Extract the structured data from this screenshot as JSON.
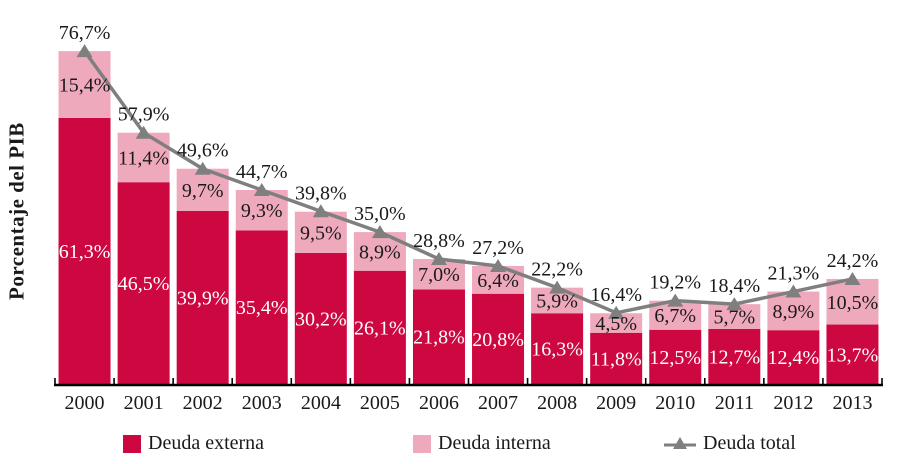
{
  "chart_data": {
    "type": "bar",
    "subtype": "stacked-bars-with-line-overlay",
    "title": "",
    "xlabel": "",
    "ylabel": "Porcentaje del PIB",
    "ylim": [
      0,
      80
    ],
    "grid": false,
    "legend_position": "bottom",
    "value_label_format": "comma-decimal percent (e.g. 76,7%)",
    "categories": [
      "2000",
      "2001",
      "2002",
      "2003",
      "2004",
      "2005",
      "2006",
      "2007",
      "2008",
      "2009",
      "2010",
      "2011",
      "2012",
      "2013"
    ],
    "series": [
      {
        "name": "Deuda externa",
        "type": "bar",
        "stack": "deuda",
        "color": "#CD0841",
        "label_color": "#FFFFFF",
        "values": [
          61.3,
          46.5,
          39.9,
          35.4,
          30.2,
          26.1,
          21.8,
          20.8,
          16.3,
          11.8,
          12.5,
          12.7,
          12.4,
          13.7
        ]
      },
      {
        "name": "Deuda interna",
        "type": "bar",
        "stack": "deuda",
        "color": "#EFA9BC",
        "label_color": "#1A1A1A",
        "values": [
          15.4,
          11.4,
          9.7,
          9.3,
          9.5,
          8.9,
          7.0,
          6.4,
          5.9,
          4.5,
          6.7,
          5.7,
          8.9,
          10.5
        ]
      },
      {
        "name": "Deuda total",
        "type": "line",
        "marker": "triangle",
        "color": "#7F7F7F",
        "label_color": "#1A1A1A",
        "values": [
          76.7,
          57.9,
          49.6,
          44.7,
          39.8,
          35.0,
          28.8,
          27.2,
          22.2,
          16.4,
          19.2,
          18.4,
          21.3,
          24.2
        ]
      }
    ]
  },
  "axis": {
    "line_color": "#000000",
    "tick_color": "#000000",
    "year_label_color": "#1A1A1A"
  },
  "legend": {
    "items": [
      {
        "label": "Deuda externa",
        "marker": "square"
      },
      {
        "label": "Deuda interna",
        "marker": "square"
      },
      {
        "label": "Deuda total",
        "marker": "line-triangle"
      }
    ]
  }
}
